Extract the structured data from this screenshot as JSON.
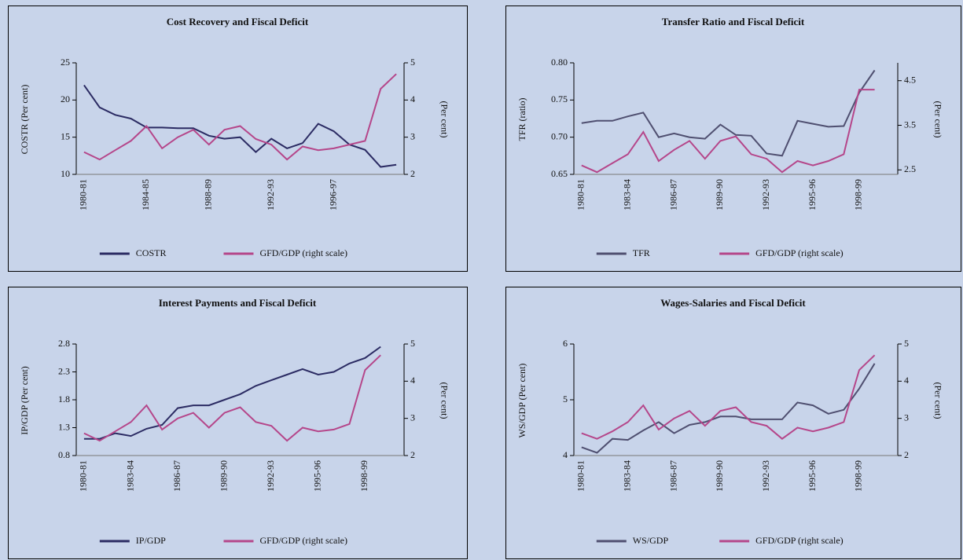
{
  "chart_data": [
    {
      "type": "line",
      "title": "Cost Recovery and Fiscal Deficit",
      "categories": [
        "1980-81",
        null,
        null,
        null,
        "1984-85",
        null,
        null,
        null,
        "1988-89",
        null,
        null,
        null,
        "1992-93",
        null,
        null,
        null,
        "1996-97",
        null,
        null,
        null,
        null
      ],
      "y_label": "COSTR (Per cent)",
      "y2_label": "(Per cent)",
      "ylim": [
        10,
        25
      ],
      "yticks": [
        10,
        15,
        20,
        25
      ],
      "y2lim": [
        2,
        5
      ],
      "y2ticks": [
        2,
        3,
        4,
        5
      ],
      "series": [
        {
          "name": "COSTR",
          "color": "#2b2b63",
          "values": [
            22,
            19,
            18,
            17.5,
            16.3,
            16.3,
            16.2,
            16.2,
            15.2,
            14.8,
            15,
            13,
            14.8,
            13.5,
            14.2,
            16.8,
            15.8,
            14,
            13.3,
            11,
            11.3
          ]
        },
        {
          "name": "GFD/GDP (right scale)",
          "color": "#b5468a",
          "axis": "y2",
          "values": [
            2.6,
            2.4,
            2.65,
            2.9,
            3.3,
            2.7,
            3.0,
            3.2,
            2.8,
            3.2,
            3.3,
            2.95,
            2.8,
            2.4,
            2.75,
            2.65,
            2.7,
            2.8,
            2.9,
            4.3,
            4.7
          ]
        }
      ]
    },
    {
      "type": "line",
      "title": "Transfer Ratio and Fiscal Deficit",
      "categories": [
        "1980-81",
        null,
        null,
        "1983-84",
        null,
        null,
        "1986-87",
        null,
        null,
        "1989-90",
        null,
        null,
        "1992-93",
        null,
        null,
        "1995-96",
        null,
        null,
        "1998-99",
        null,
        null
      ],
      "y_label": "TFR (ratio)",
      "y2_label": "(Per cent)",
      "ylim": [
        0.65,
        0.8
      ],
      "yticks": [
        {
          "value": 0.65,
          "label": "0.65"
        },
        {
          "value": 0.7,
          "label": "0.70"
        },
        {
          "value": 0.75,
          "label": "0.75"
        },
        {
          "value": 0.8,
          "label": "0.80"
        }
      ],
      "y2lim": [
        2.4,
        4.9
      ],
      "y2ticks": [
        2.5,
        3.5,
        4.5
      ],
      "series": [
        {
          "name": "TFR",
          "color": "#4f4f70",
          "values": [
            0.719,
            0.722,
            0.722,
            0.728,
            0.733,
            0.7,
            0.705,
            0.7,
            0.698,
            0.717,
            0.703,
            0.702,
            0.678,
            0.675,
            0.722,
            0.718,
            0.714,
            0.715,
            0.76,
            0.79,
            null
          ]
        },
        {
          "name": "GFD/GDP (right scale)",
          "color": "#b5468a",
          "axis": "y2",
          "values": [
            2.6,
            2.45,
            2.65,
            2.85,
            3.35,
            2.7,
            2.95,
            3.15,
            2.75,
            3.15,
            3.25,
            2.85,
            2.75,
            2.45,
            2.7,
            2.6,
            2.7,
            2.85,
            4.3,
            4.3,
            null
          ]
        }
      ]
    },
    {
      "type": "line",
      "title": "Interest Payments and Fiscal Deficit",
      "categories": [
        "1980-81",
        null,
        null,
        "1983-84",
        null,
        null,
        "1986-87",
        null,
        null,
        "1989-90",
        null,
        null,
        "1992-93",
        null,
        null,
        "1995-96",
        null,
        null,
        "1998-99",
        null,
        null
      ],
      "y_label": "IP/GDP (Per cent)",
      "y2_label": "(Per cent)",
      "ylim": [
        0.8,
        2.8
      ],
      "yticks": [
        0.8,
        1.3,
        1.8,
        2.3,
        2.8
      ],
      "y2lim": [
        2,
        5
      ],
      "y2ticks": [
        2,
        3,
        4,
        5
      ],
      "series": [
        {
          "name": "IP/GDP",
          "color": "#2b2b63",
          "values": [
            1.1,
            1.1,
            1.2,
            1.15,
            1.28,
            1.35,
            1.65,
            1.7,
            1.7,
            1.8,
            1.9,
            2.05,
            2.15,
            2.25,
            2.35,
            2.25,
            2.3,
            2.45,
            2.55,
            2.75,
            null
          ]
        },
        {
          "name": "GFD/GDP (right scale)",
          "color": "#b5468a",
          "axis": "y2",
          "values": [
            2.6,
            2.4,
            2.65,
            2.9,
            3.35,
            2.7,
            3.0,
            3.15,
            2.75,
            3.15,
            3.3,
            2.9,
            2.8,
            2.4,
            2.75,
            2.65,
            2.7,
            2.85,
            4.3,
            4.7,
            null
          ]
        }
      ]
    },
    {
      "type": "line",
      "title": "Wages-Salaries and Fiscal Deficit",
      "categories": [
        "1980-81",
        null,
        null,
        "1983-84",
        null,
        null,
        "1986-87",
        null,
        null,
        "1989-90",
        null,
        null,
        "1992-93",
        null,
        null,
        "1995-96",
        null,
        null,
        "1998-99",
        null,
        null
      ],
      "y_label": "WS/GDP (Per cent)",
      "y2_label": "(Per cent)",
      "ylim": [
        4,
        6
      ],
      "yticks": [
        4,
        5,
        6
      ],
      "y2lim": [
        2,
        5
      ],
      "y2ticks": [
        2,
        3,
        4,
        5
      ],
      "series": [
        {
          "name": "WS/GDP",
          "color": "#4f4f70",
          "values": [
            4.15,
            4.05,
            4.3,
            4.28,
            4.45,
            4.6,
            4.4,
            4.55,
            4.6,
            4.7,
            4.7,
            4.65,
            4.65,
            4.65,
            4.95,
            4.9,
            4.75,
            4.82,
            5.2,
            5.65,
            null
          ]
        },
        {
          "name": "GFD/GDP (right scale)",
          "color": "#b5468a",
          "axis": "y2",
          "values": [
            2.6,
            2.45,
            2.65,
            2.9,
            3.35,
            2.7,
            3.0,
            3.2,
            2.8,
            3.2,
            3.3,
            2.9,
            2.8,
            2.45,
            2.75,
            2.65,
            2.75,
            2.9,
            4.3,
            4.7,
            null
          ]
        }
      ]
    }
  ]
}
